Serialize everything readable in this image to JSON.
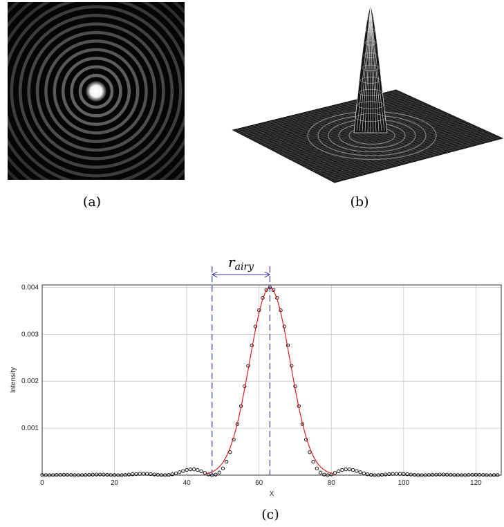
{
  "captions": {
    "a": "(a)",
    "b": "(b)",
    "c": "(c)"
  },
  "chart_data": {
    "type": "line",
    "xlabel": "X",
    "ylabel": "Intensity",
    "annotation": {
      "symbol": "r",
      "subscript": "airy",
      "x": [
        47,
        63
      ],
      "color": "#3a3aaa"
    },
    "xlim": [
      0,
      127
    ],
    "ylim": [
      0,
      0.00405
    ],
    "xticks": [
      0,
      20,
      40,
      60,
      80,
      100,
      120
    ],
    "yticks": [
      0.001,
      0.002,
      0.003,
      0.004
    ],
    "grid": true,
    "series": [
      {
        "color": "#000000",
        "style": "markers",
        "x": [
          0,
          1,
          2,
          3,
          4,
          5,
          6,
          7,
          8,
          9,
          10,
          11,
          12,
          13,
          14,
          15,
          16,
          17,
          18,
          19,
          20,
          21,
          22,
          23,
          24,
          25,
          26,
          27,
          28,
          29,
          30,
          31,
          32,
          33,
          34,
          35,
          36,
          37,
          38,
          39,
          40,
          41,
          42,
          43,
          44,
          45,
          46,
          47,
          48,
          49,
          50,
          51,
          52,
          53,
          54,
          55,
          56,
          57,
          58,
          59,
          60,
          61,
          62,
          63,
          64,
          65,
          66,
          67,
          68,
          69,
          70,
          71,
          72,
          73,
          74,
          75,
          76,
          77,
          78,
          79,
          80,
          81,
          82,
          83,
          84,
          85,
          86,
          87,
          88,
          89,
          90,
          91,
          92,
          93,
          94,
          95,
          96,
          97,
          98,
          99,
          100,
          101,
          102,
          103,
          104,
          105,
          106,
          107,
          108,
          109,
          110,
          111,
          112,
          113,
          114,
          115,
          116,
          117,
          118,
          119,
          120,
          121,
          122,
          123,
          124,
          125,
          126
        ],
        "values": [
          3e-06,
          1e-06,
          0,
          2e-06,
          5e-06,
          7e-06,
          8e-06,
          7e-06,
          5e-06,
          2e-06,
          0,
          1e-06,
          3e-06,
          7e-06,
          1e-05,
          1.2e-05,
          1.3e-05,
          1.1e-05,
          8e-06,
          4e-06,
          1e-06,
          0,
          2e-06,
          6e-06,
          1.2e-05,
          1.9e-05,
          2.4e-05,
          2.8e-05,
          3e-05,
          2.8e-05,
          2.2e-05,
          1.5e-05,
          7e-06,
          1e-06,
          0,
          6e-06,
          1.8e-05,
          3.8e-05,
          6.3e-05,
          8.8e-05,
          0.00011,
          0.000123,
          0.000124,
          0.00011,
          8.3e-05,
          4.7e-05,
          1.5e-05,
          0,
          1.2e-05,
          5.6e-05,
          0.000144,
          0.000286,
          0.000489,
          0.000756,
          0.001087,
          0.00147,
          0.00189,
          0.00233,
          0.002763,
          0.003165,
          0.003511,
          0.003776,
          0.003943,
          0.004,
          0.003943,
          0.003776,
          0.003511,
          0.003165,
          0.002763,
          0.00233,
          0.00189,
          0.00147,
          0.001087,
          0.000756,
          0.000489,
          0.000286,
          0.000144,
          5.6e-05,
          1.2e-05,
          0,
          1.5e-05,
          4.7e-05,
          8.3e-05,
          0.00011,
          0.000124,
          0.000123,
          0.00011,
          8.8e-05,
          6.3e-05,
          3.8e-05,
          1.8e-05,
          6e-06,
          0,
          1e-06,
          7e-06,
          1.5e-05,
          2.2e-05,
          2.8e-05,
          3e-05,
          2.8e-05,
          2.4e-05,
          1.9e-05,
          1.2e-05,
          6e-06,
          2e-06,
          0,
          1e-06,
          4e-06,
          8e-06,
          1.1e-05,
          1.3e-05,
          1.2e-05,
          1e-05,
          7e-06,
          3e-06,
          1e-06,
          0,
          2e-06,
          5e-06,
          7e-06,
          8e-06,
          7e-06,
          5e-06,
          2e-06,
          0,
          1e-06,
          3e-06
        ]
      },
      {
        "color": "#e02020",
        "style": "line",
        "x": [
          45,
          46,
          47,
          48,
          49,
          50,
          51,
          52,
          53,
          54,
          55,
          56,
          57,
          58,
          59,
          60,
          61,
          62,
          63,
          64,
          65,
          66,
          67,
          68,
          69,
          70,
          71,
          72,
          73,
          74,
          75,
          76,
          77,
          78,
          79,
          80,
          81
        ],
        "values": [
          2.29e-05,
          4e-05,
          6.76e-05,
          0.00011,
          0.000175,
          0.000269,
          0.000402,
          0.000581,
          0.000812,
          0.0011,
          0.001442,
          0.001832,
          0.002254,
          0.002684,
          0.003099,
          0.003464,
          0.003753,
          0.003937,
          0.004,
          0.003937,
          0.003753,
          0.003464,
          0.003099,
          0.002684,
          0.002254,
          0.001832,
          0.001442,
          0.0011,
          0.000812,
          0.000581,
          0.000402,
          0.000269,
          0.000175,
          0.00011,
          6.76e-05,
          4e-05,
          2.29e-05
        ]
      }
    ]
  }
}
